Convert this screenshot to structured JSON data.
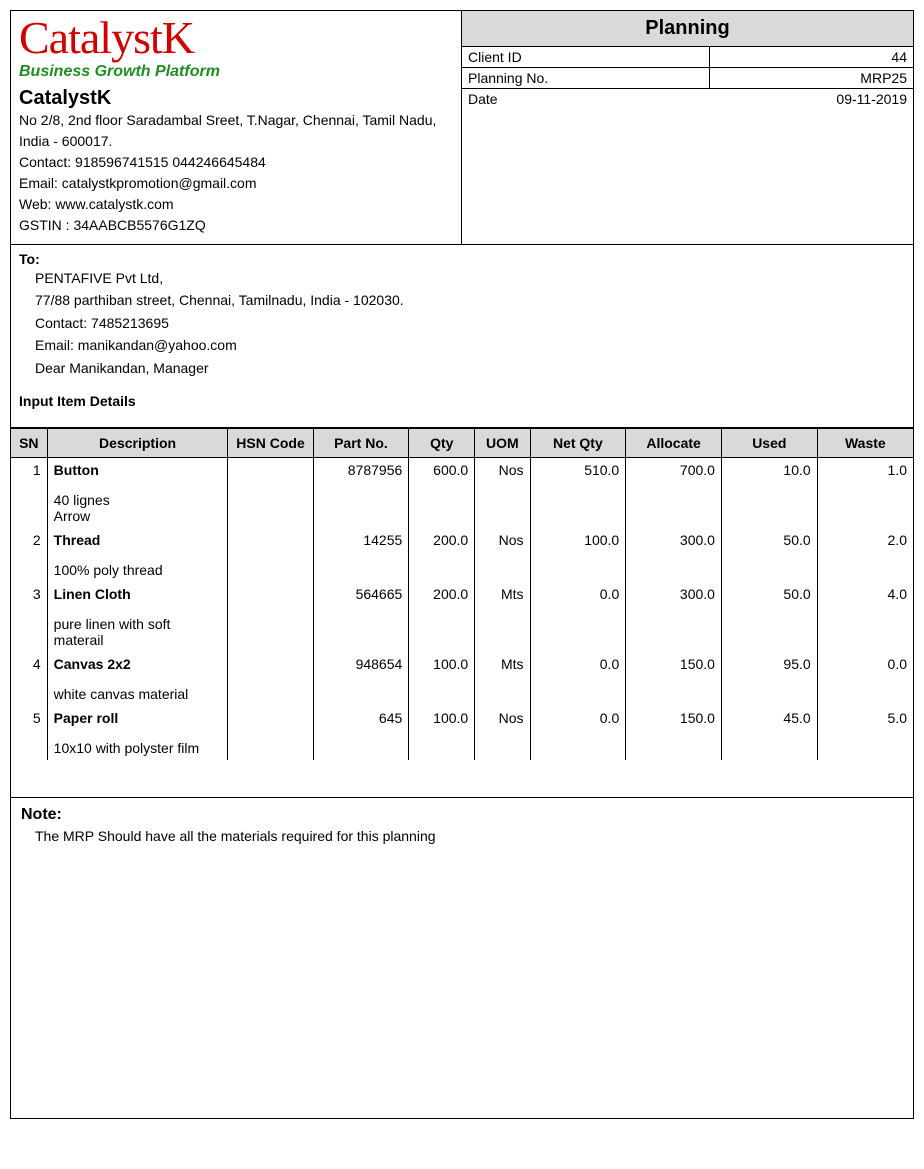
{
  "logo": {
    "text": "CatalystK",
    "tagline": "Business Growth Platform",
    "color": "#d00000",
    "tagline_color": "#228b22"
  },
  "company": {
    "name": "CatalystK",
    "address": "No 2/8, 2nd floor Saradambal Sreet, T.Nagar, Chennai, Tamil Nadu, India - 600017.",
    "contact": "Contact: 918596741515  044246645484",
    "email": "Email: catalystkpromotion@gmail.com",
    "web": "Web: www.catalystk.com",
    "gstin": "GSTIN : 34AABCB5576G1ZQ"
  },
  "planning": {
    "title": "Planning",
    "client_id_label": "Client ID",
    "client_id": "44",
    "planning_no_label": "Planning No.",
    "planning_no": "MRP25",
    "date_label": "Date",
    "date": "09-11-2019"
  },
  "to": {
    "label": "To:",
    "name": "PENTAFIVE Pvt Ltd,",
    "address": "77/88 parthiban street, Chennai, Tamilnadu, India - 102030.",
    "contact": "Contact: 7485213695",
    "email": "Email: manikandan@yahoo.com",
    "dear": "Dear Manikandan, Manager"
  },
  "section_title": "Input Item Details",
  "columns": {
    "sn": "SN",
    "desc": "Description",
    "hsn": "HSN Code",
    "part": "Part No.",
    "qty": "Qty",
    "uom": "UOM",
    "netqty": "Net Qty",
    "alloc": "Allocate",
    "used": "Used",
    "waste": "Waste"
  },
  "rows": [
    {
      "sn": "1",
      "name": "Button",
      "sub": "40 lignes\nArrow",
      "hsn": "",
      "part": "8787956",
      "qty": "600.0",
      "uom": "Nos",
      "netqty": "510.0",
      "alloc": "700.0",
      "used": "10.0",
      "waste": "1.0"
    },
    {
      "sn": "2",
      "name": "Thread",
      "sub": "100% poly thread",
      "hsn": "",
      "part": "14255",
      "qty": "200.0",
      "uom": "Nos",
      "netqty": "100.0",
      "alloc": "300.0",
      "used": "50.0",
      "waste": "2.0"
    },
    {
      "sn": "3",
      "name": "Linen Cloth",
      "sub": "pure linen with soft materail",
      "hsn": "",
      "part": "564665",
      "qty": "200.0",
      "uom": "Mts",
      "netqty": "0.0",
      "alloc": "300.0",
      "used": "50.0",
      "waste": "4.0"
    },
    {
      "sn": "4",
      "name": "Canvas 2x2",
      "sub": "white canvas material",
      "hsn": "",
      "part": "948654",
      "qty": "100.0",
      "uom": "Mts",
      "netqty": "0.0",
      "alloc": "150.0",
      "used": "95.0",
      "waste": "0.0"
    },
    {
      "sn": "5",
      "name": "Paper roll",
      "sub": "10x10 with polyster film",
      "hsn": "",
      "part": "645",
      "qty": "100.0",
      "uom": "Nos",
      "netqty": "0.0",
      "alloc": "150.0",
      "used": "45.0",
      "waste": "5.0"
    }
  ],
  "note": {
    "title": "Note:",
    "text": "The MRP Should have all the materials required for this planning"
  },
  "style": {
    "header_bg": "#d9d9d9",
    "border_color": "#000000",
    "font_family": "Segoe UI, Arial, sans-serif"
  }
}
